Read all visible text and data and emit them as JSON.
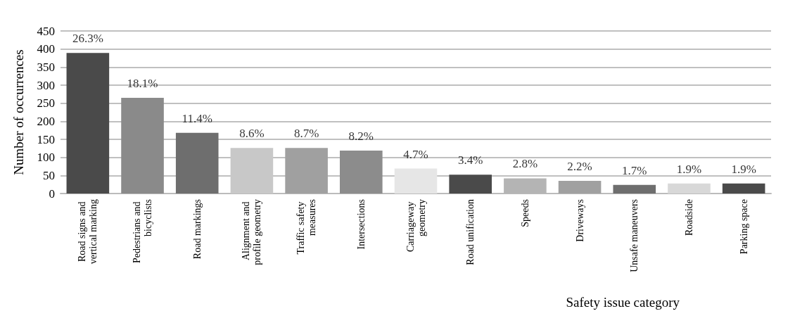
{
  "chart_data": {
    "type": "bar",
    "xlabel": "Safety issue category",
    "ylabel": "Number of occurrences",
    "categories": [
      "Road signs and vertical marking",
      "Pedestrians and bicyclists",
      "Road markings",
      "Alignment and profile geometry",
      "Traffic safety measures",
      "Intersections",
      "Carriageway geometry",
      "Road unification",
      "Speeds",
      "Driveways",
      "Unsafe maneuvers",
      "Roadside",
      "Parking space"
    ],
    "values": [
      389,
      265,
      168,
      126,
      126,
      119,
      69,
      52,
      42,
      35,
      24,
      28,
      28
    ],
    "colors": [
      "#4a4a4a",
      "#8a8a8a",
      "#6e6e6e",
      "#c8c8c8",
      "#a0a0a0",
      "#8c8c8c",
      "#e6e6e6",
      "#4a4a4a",
      "#b4b4b4",
      "#a0a0a0",
      "#6e6e6e",
      "#d8d8d8",
      "#4a4a4a"
    ],
    "annotations": [
      {
        "text": "26.3%",
        "x": "Road signs and vertical marking",
        "y": 389
      },
      {
        "text": "18.1%",
        "x": "Pedestrians and bicyclists",
        "y": 265
      },
      {
        "text": "11.4%",
        "x": "Road markings",
        "y": 168
      },
      {
        "text": "8.6%",
        "x": "Alignment and profile geometry",
        "y": 126
      },
      {
        "text": "8.7%",
        "x": "Traffic safety measures",
        "y": 126
      },
      {
        "text": "8.2%",
        "x": "Intersections",
        "y": 119
      },
      {
        "text": "4.7%",
        "x": "Carriageway geometry",
        "y": 69
      },
      {
        "text": "3.4%",
        "x": "Road unification",
        "y": 52
      },
      {
        "text": "2.8%",
        "x": "Speeds",
        "y": 42
      },
      {
        "text": "2.2%",
        "x": "Driveways",
        "y": 35
      },
      {
        "text": "1.7%",
        "x": "Unsafe maneuvers",
        "y": 24
      },
      {
        "text": "1.9%",
        "x": "Roadside",
        "y": 28
      },
      {
        "text": "1.9%",
        "x": "Parking space",
        "y": 28
      }
    ],
    "ylim": [
      0,
      450
    ],
    "yticks": [
      0,
      50,
      100,
      150,
      200,
      250,
      300,
      350,
      400,
      450
    ],
    "grid": "y"
  }
}
